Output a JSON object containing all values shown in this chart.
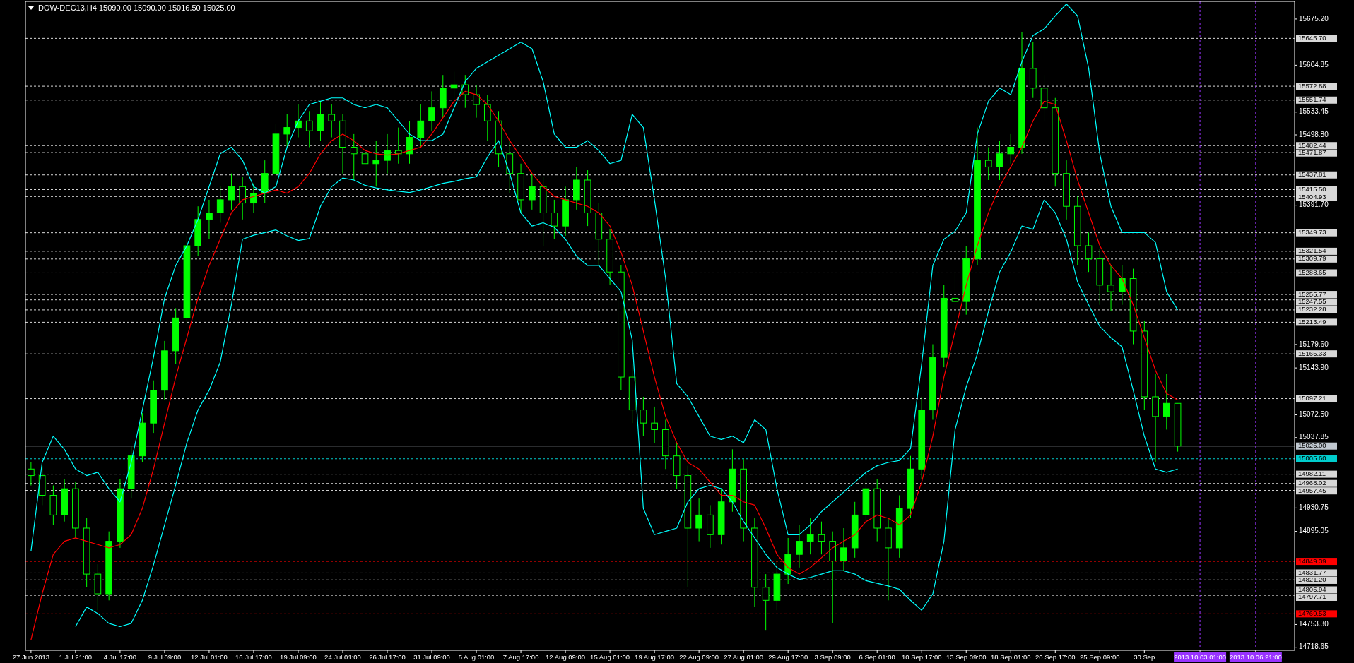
{
  "chart_data": {
    "type": "candlestick",
    "title": "DOW-DEC13,H4  15090.00 15090.00 15016.50 15025.00",
    "color": "#00ff00",
    "categories": [
      "27 Jun 2013",
      null,
      null,
      null,
      "1 Jul 21:00",
      null,
      null,
      null,
      "4 Jul 17:00",
      null,
      null,
      null,
      "9 Jul 09:00",
      null,
      null,
      null,
      "12 Jul 01:00",
      null,
      null,
      null,
      "16 Jul 17:00",
      null,
      null,
      null,
      "19 Jul 09:00",
      null,
      null,
      null,
      "24 Jul 01:00",
      null,
      null,
      null,
      "26 Jul 17:00",
      null,
      null,
      null,
      "31 Jul 09:00",
      null,
      null,
      null,
      "5 Aug 01:00",
      null,
      null,
      null,
      "7 Aug 17:00",
      null,
      null,
      null,
      "12 Aug 09:00",
      null,
      null,
      null,
      "15 Aug 01:00",
      null,
      null,
      null,
      "19 Aug 17:00",
      null,
      null,
      null,
      "22 Aug 09:00",
      null,
      null,
      null,
      "27 Aug 01:00",
      null,
      null,
      null,
      "29 Aug 17:00",
      null,
      null,
      null,
      "3 Sep 09:00",
      null,
      null,
      null,
      "6 Sep 01:00",
      null,
      null,
      null,
      "10 Sep 17:00",
      null,
      null,
      null,
      "13 Sep 09:00",
      null,
      null,
      null,
      "18 Sep 01:00",
      null,
      null,
      null,
      "20 Sep 17:00",
      null,
      null,
      null,
      "25 Sep 09:00",
      null,
      null,
      null,
      "30 Sep",
      null,
      null,
      null,
      null,
      "2013.10.03 01:00",
      null,
      null,
      null,
      null,
      "2013.10.06 21:00",
      null,
      null,
      null
    ],
    "ohlc": [
      [
        14990,
        15000,
        14965,
        14980
      ],
      [
        14980,
        14995,
        14935,
        14950
      ],
      [
        14950,
        14965,
        14905,
        14920
      ],
      [
        14920,
        14975,
        14910,
        14960
      ],
      [
        14960,
        14970,
        14885,
        14900
      ],
      [
        14900,
        14915,
        14810,
        14830
      ],
      [
        14830,
        14845,
        14775,
        14800
      ],
      [
        14800,
        14895,
        14790,
        14880
      ],
      [
        14880,
        14975,
        14870,
        14960
      ],
      [
        14960,
        15025,
        14945,
        15010
      ],
      [
        15010,
        15075,
        15000,
        15060
      ],
      [
        15060,
        15125,
        15045,
        15110
      ],
      [
        15110,
        15185,
        15095,
        15170
      ],
      [
        15170,
        15235,
        15150,
        15220
      ],
      [
        15220,
        15345,
        15210,
        15330
      ],
      [
        15330,
        15390,
        15315,
        15370
      ],
      [
        15370,
        15400,
        15340,
        15380
      ],
      [
        15380,
        15420,
        15365,
        15400
      ],
      [
        15400,
        15440,
        15385,
        15420
      ],
      [
        15420,
        15435,
        15370,
        15395
      ],
      [
        15395,
        15425,
        15380,
        15410
      ],
      [
        15410,
        15460,
        15395,
        15440
      ],
      [
        15440,
        15515,
        15430,
        15500
      ],
      [
        15500,
        15530,
        15480,
        15510
      ],
      [
        15510,
        15545,
        15495,
        15520
      ],
      [
        15520,
        15535,
        15480,
        15505
      ],
      [
        15505,
        15550,
        15490,
        15530
      ],
      [
        15530,
        15545,
        15495,
        15520
      ],
      [
        15520,
        15530,
        15440,
        15480
      ],
      [
        15480,
        15500,
        15430,
        15470
      ],
      [
        15470,
        15485,
        15400,
        15455
      ],
      [
        15455,
        15490,
        15420,
        15460
      ],
      [
        15460,
        15500,
        15440,
        15475
      ],
      [
        15475,
        15510,
        15455,
        15470
      ],
      [
        15470,
        15520,
        15455,
        15495
      ],
      [
        15495,
        15545,
        15480,
        15520
      ],
      [
        15520,
        15565,
        15505,
        15540
      ],
      [
        15540,
        15590,
        15525,
        15570
      ],
      [
        15570,
        15595,
        15550,
        15575
      ],
      [
        15575,
        15590,
        15540,
        15560
      ],
      [
        15560,
        15575,
        15525,
        15545
      ],
      [
        15545,
        15560,
        15490,
        15520
      ],
      [
        15520,
        15535,
        15450,
        15470
      ],
      [
        15470,
        15490,
        15410,
        15440
      ],
      [
        15440,
        15455,
        15380,
        15400
      ],
      [
        15400,
        15440,
        15385,
        15420
      ],
      [
        15420,
        15435,
        15330,
        15380
      ],
      [
        15380,
        15400,
        15340,
        15360
      ],
      [
        15360,
        15420,
        15345,
        15400
      ],
      [
        15400,
        15450,
        15385,
        15430
      ],
      [
        15430,
        15445,
        15360,
        15380
      ],
      [
        15380,
        15395,
        15300,
        15340
      ],
      [
        15340,
        15355,
        15270,
        15290
      ],
      [
        15290,
        15300,
        15110,
        15130
      ],
      [
        15130,
        15150,
        15060,
        15080
      ],
      [
        15080,
        15100,
        15040,
        15060
      ],
      [
        15060,
        15085,
        15030,
        15050
      ],
      [
        15050,
        15065,
        14990,
        15010
      ],
      [
        15010,
        15030,
        14960,
        14980
      ],
      [
        14980,
        14995,
        14810,
        14900
      ],
      [
        14900,
        14945,
        14880,
        14920
      ],
      [
        14920,
        14935,
        14870,
        14890
      ],
      [
        14890,
        14960,
        14875,
        14940
      ],
      [
        14940,
        15020,
        14925,
        14990
      ],
      [
        14990,
        15005,
        14880,
        14900
      ],
      [
        14900,
        14915,
        14780,
        14810
      ],
      [
        14810,
        14830,
        14745,
        14790
      ],
      [
        14790,
        14850,
        14775,
        14830
      ],
      [
        14830,
        14885,
        14815,
        14860
      ],
      [
        14860,
        14905,
        14840,
        14880
      ],
      [
        14880,
        14915,
        14860,
        14890
      ],
      [
        14890,
        14910,
        14860,
        14880
      ],
      [
        14880,
        14895,
        14755,
        14850
      ],
      [
        14850,
        14900,
        14835,
        14870
      ],
      [
        14870,
        14940,
        14855,
        14920
      ],
      [
        14920,
        14985,
        14905,
        14960
      ],
      [
        14960,
        14975,
        14880,
        14900
      ],
      [
        14900,
        14915,
        14790,
        14870
      ],
      [
        14870,
        14950,
        14855,
        14930
      ],
      [
        14930,
        15010,
        14915,
        14990
      ],
      [
        14990,
        15100,
        14975,
        15080
      ],
      [
        15080,
        15180,
        15065,
        15160
      ],
      [
        15160,
        15270,
        15145,
        15250
      ],
      [
        15250,
        15290,
        15220,
        15245
      ],
      [
        15245,
        15330,
        15225,
        15310
      ],
      [
        15310,
        15510,
        15300,
        15460
      ],
      [
        15460,
        15480,
        15430,
        15450
      ],
      [
        15450,
        15490,
        15430,
        15470
      ],
      [
        15470,
        15500,
        15455,
        15480
      ],
      [
        15480,
        15655,
        15470,
        15600
      ],
      [
        15600,
        15640,
        15555,
        15570
      ],
      [
        15570,
        15590,
        15520,
        15540
      ],
      [
        15540,
        15555,
        15420,
        15440
      ],
      [
        15440,
        15460,
        15370,
        15390
      ],
      [
        15390,
        15405,
        15300,
        15330
      ],
      [
        15330,
        15350,
        15290,
        15310
      ],
      [
        15310,
        15325,
        15240,
        15270
      ],
      [
        15270,
        15300,
        15230,
        15260
      ],
      [
        15260,
        15300,
        15240,
        15280
      ],
      [
        15280,
        15295,
        15180,
        15200
      ],
      [
        15200,
        15215,
        15080,
        15100
      ],
      [
        15100,
        15135,
        15000,
        15070
      ],
      [
        15070,
        15135,
        15050,
        15090
      ],
      [
        15090,
        15090,
        15016.5,
        15025
      ],
      null,
      null,
      null,
      null,
      null,
      null,
      null,
      null,
      null,
      null
    ],
    "series": [
      {
        "type": "line",
        "color": "#ff0000",
        "values": [
          14730,
          14800,
          14860,
          14880,
          14885,
          14880,
          14875,
          14870,
          14875,
          14890,
          14930,
          14990,
          15060,
          15130,
          15190,
          15250,
          15300,
          15340,
          15380,
          15400,
          15405,
          15410,
          15415,
          15410,
          15420,
          15440,
          15470,
          15490,
          15500,
          15490,
          15475,
          15470,
          15468,
          15470,
          15475,
          15480,
          15500,
          15525,
          15550,
          15565,
          15560,
          15545,
          15520,
          15490,
          15465,
          15440,
          15420,
          15405,
          15400,
          15395,
          15390,
          15380,
          15360,
          15320,
          15270,
          15200,
          15130,
          15070,
          15030,
          15000,
          14990,
          14970,
          14950,
          14950,
          14940,
          14935,
          14900,
          14860,
          14840,
          14830,
          14840,
          14855,
          14870,
          14880,
          14890,
          14910,
          14920,
          14915,
          14905,
          14920,
          14970,
          15040,
          15130,
          15200,
          15270,
          15330,
          15380,
          15420,
          15450,
          15480,
          15520,
          15550,
          15545,
          15490,
          15430,
          15380,
          15330,
          15300,
          15280,
          15240,
          15190,
          15140,
          15105,
          15095,
          null,
          null,
          null,
          null,
          null,
          null,
          null,
          null,
          null,
          null
        ]
      },
      {
        "type": "line",
        "color": "#00ffff",
        "values": [
          14865,
          15000,
          15040,
          15020,
          14990,
          14980,
          14985,
          14960,
          14940,
          15000,
          15080,
          15160,
          15250,
          15300,
          15330,
          15370,
          15420,
          15470,
          15480,
          15460,
          15420,
          15410,
          15420,
          15480,
          15520,
          15545,
          15550,
          15555,
          15555,
          15545,
          15540,
          15545,
          15540,
          15520,
          15500,
          15490,
          15490,
          15500,
          15540,
          15580,
          15600,
          15610,
          15620,
          15630,
          15640,
          15630,
          15580,
          15500,
          15480,
          15480,
          15490,
          15475,
          15455,
          15460,
          15530,
          15510,
          15400,
          15280,
          15120,
          15100,
          15070,
          15040,
          15035,
          15040,
          15030,
          15065,
          15050,
          14960,
          14890,
          14890,
          14905,
          14925,
          14940,
          14955,
          14970,
          14985,
          14995,
          15000,
          15003,
          15021,
          15150,
          15300,
          15340,
          15352,
          15380,
          15500,
          15550,
          15570,
          15560,
          15610,
          15650,
          15660,
          15680,
          15698,
          15680,
          15600,
          15470,
          15390,
          15350,
          15350,
          15350,
          15335,
          15260,
          15232,
          null,
          null,
          null,
          null,
          null,
          null,
          null,
          null,
          null,
          null
        ]
      },
      {
        "type": "line",
        "color": "#00ffff",
        "values": [
          null,
          null,
          null,
          null,
          14750,
          14780,
          14770,
          14755,
          14750,
          14755,
          14790,
          14844,
          14905,
          14966,
          15030,
          15080,
          15110,
          15153,
          15240,
          15340,
          15346,
          15350,
          15354,
          15345,
          15338,
          15341,
          15390,
          15420,
          15433,
          15430,
          15422,
          15418,
          15415,
          15413,
          15411,
          15415,
          15420,
          15425,
          15428,
          15432,
          15435,
          15465,
          15490,
          15440,
          15380,
          15360,
          15365,
          15358,
          15340,
          15314,
          15300,
          15300,
          15280,
          15260,
          15187,
          14930,
          14890,
          14895,
          14900,
          14940,
          14960,
          14965,
          14960,
          14940,
          14910,
          14885,
          14860,
          14840,
          14830,
          14822,
          14825,
          14830,
          14835,
          14835,
          14830,
          14820,
          14816,
          14812,
          14807,
          14790,
          14775,
          14800,
          14880,
          15050,
          15115,
          15165,
          15230,
          15290,
          15320,
          15360,
          15355,
          15400,
          15380,
          15340,
          15275,
          15240,
          15207,
          15190,
          15176,
          15110,
          15040,
          14990,
          14985,
          14990,
          null,
          null,
          null,
          null,
          null,
          null,
          null,
          null,
          null,
          null
        ]
      }
    ],
    "ylim": [
      14714,
      15702
    ],
    "yticks": [
      {
        "value": 15675.2,
        "label": "15675.20"
      },
      {
        "value": 15604.85,
        "label": "15604.85"
      },
      {
        "value": 15533.45,
        "label": "15533.45"
      },
      {
        "value": 15498.8,
        "label": "15498.80"
      },
      {
        "value": 15391.7,
        "label": "15391.70"
      },
      {
        "value": 15179.6,
        "label": "15179.60"
      },
      {
        "value": 15143.9,
        "label": "15143.90"
      },
      {
        "value": 15072.5,
        "label": "15072.50"
      },
      {
        "value": 15037.85,
        "label": "15037.85"
      },
      {
        "value": 14930.75,
        "label": "14930.75"
      },
      {
        "value": 14895.05,
        "label": "14895.05"
      },
      {
        "value": 14753.3,
        "label": "14753.30"
      },
      {
        "value": 14718.65,
        "label": "14718.65"
      }
    ],
    "ref_lines": [
      {
        "axis": "y",
        "value": 15645.7,
        "label": "15645.70",
        "color": "#d8d8d8",
        "line_style": "dashed"
      },
      {
        "axis": "y",
        "value": 15572.88,
        "label": "15572.88",
        "color": "#d8d8d8",
        "line_style": "dashed"
      },
      {
        "axis": "y",
        "value": 15551.74,
        "label": "15551.74",
        "color": "#d8d8d8",
        "line_style": "dashed"
      },
      {
        "axis": "y",
        "value": 15482.44,
        "label": "15482.44",
        "color": "#d8d8d8",
        "line_style": "dashed"
      },
      {
        "axis": "y",
        "value": 15471.87,
        "label": "15471.87",
        "color": "#d8d8d8",
        "line_style": "dashed"
      },
      {
        "axis": "y",
        "value": 15437.81,
        "label": "15437.81",
        "color": "#d8d8d8",
        "line_style": "dashed"
      },
      {
        "axis": "y",
        "value": 15415.5,
        "label": "15415.50",
        "color": "#d8d8d8",
        "line_style": "dashed"
      },
      {
        "axis": "y",
        "value": 15404.93,
        "label": "15404.93",
        "color": "#d8d8d8",
        "line_style": "dashed"
      },
      {
        "axis": "y",
        "value": 15349.73,
        "label": "15349.73",
        "color": "#d8d8d8",
        "line_style": "dashed"
      },
      {
        "axis": "y",
        "value": 15321.54,
        "label": "15321.54",
        "color": "#d8d8d8",
        "line_style": "dashed"
      },
      {
        "axis": "y",
        "value": 15309.79,
        "label": "15309.79",
        "color": "#d8d8d8",
        "line_style": "dashed"
      },
      {
        "axis": "y",
        "value": 15288.65,
        "label": "15288.65",
        "color": "#d8d8d8",
        "line_style": "dashed"
      },
      {
        "axis": "y",
        "value": 15255.77,
        "label": "15255.77",
        "color": "#d8d8d8",
        "line_style": "dashed"
      },
      {
        "axis": "y",
        "value": 15247.55,
        "label": "15247.55",
        "color": "#d8d8d8",
        "line_style": "dashed"
      },
      {
        "axis": "y",
        "value": 15232.28,
        "label": "15232.28",
        "color": "#d8d8d8",
        "line_style": "dashed"
      },
      {
        "axis": "y",
        "value": 15213.49,
        "label": "15213.49",
        "color": "#d8d8d8",
        "line_style": "dashed"
      },
      {
        "axis": "y",
        "value": 15165.33,
        "label": "15165.33",
        "color": "#d8d8d8",
        "line_style": "dashed"
      },
      {
        "axis": "y",
        "value": 15097.21,
        "label": "15097.21",
        "color": "#d8d8d8",
        "line_style": "dashed"
      },
      {
        "axis": "y",
        "value": 15025,
        "label": "15025.00",
        "color": "#c0c8d0",
        "line_style": "solid"
      },
      {
        "axis": "y",
        "value": 15005.6,
        "label": "15005.60",
        "color": "#00cccc",
        "line_style": "dashed"
      },
      {
        "axis": "y",
        "value": 14982.11,
        "label": "14982.11",
        "color": "#d8d8d8",
        "line_style": "dashed"
      },
      {
        "axis": "y",
        "value": 14968.02,
        "label": "14968.02",
        "color": "#d8d8d8",
        "line_style": "dashed"
      },
      {
        "axis": "y",
        "value": 14957.45,
        "label": "14957.45",
        "color": "#d8d8d8",
        "line_style": "dashed"
      },
      {
        "axis": "y",
        "value": 14849.39,
        "label": "14849.39",
        "color": "#ff0000",
        "line_style": "dashed"
      },
      {
        "axis": "y",
        "value": 14831.77,
        "label": "14831.77",
        "color": "#d8d8d8",
        "line_style": "dashed"
      },
      {
        "axis": "y",
        "value": 14821.2,
        "label": "14821.20",
        "color": "#d8d8d8",
        "line_style": "dashed"
      },
      {
        "axis": "y",
        "value": 14805.94,
        "label": "14805.94",
        "color": "#d8d8d8",
        "line_style": "dashed"
      },
      {
        "axis": "y",
        "value": 14797.71,
        "label": "14797.71",
        "color": "#d8d8d8",
        "line_style": "dashed"
      },
      {
        "axis": "y",
        "value": 14769.53,
        "label": "14769.53",
        "color": "#ff0000",
        "line_style": "dashed"
      },
      {
        "axis": "x",
        "value": "2013.10.03 01:00",
        "color": "#9933ff",
        "line_style": "dashed"
      },
      {
        "axis": "x",
        "value": "2013.10.06 21:00",
        "color": "#9933ff",
        "line_style": "dashed"
      }
    ]
  }
}
